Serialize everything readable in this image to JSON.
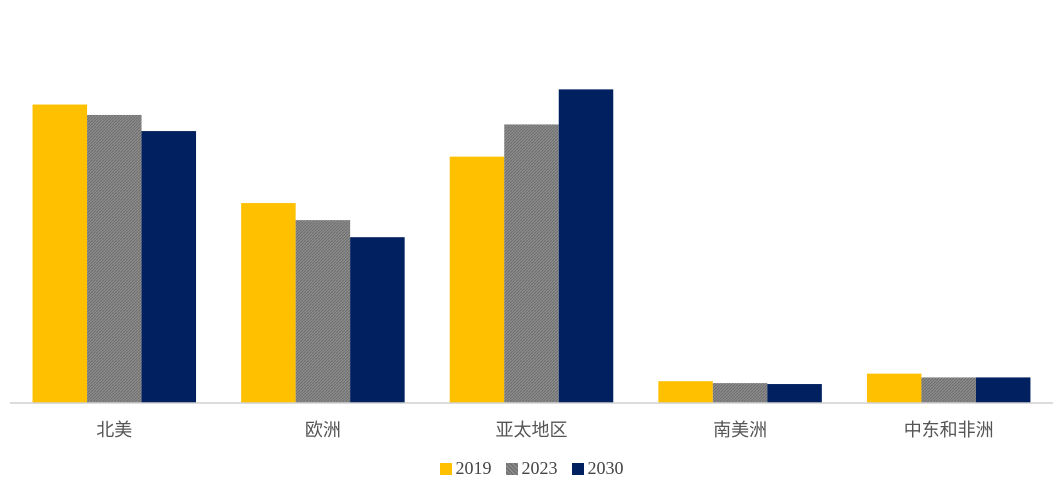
{
  "chart_data": {
    "type": "bar",
    "title": "",
    "xlabel": "",
    "ylabel": "",
    "categories": [
      "北美",
      "欧洲",
      "亚太地区",
      "南美洲",
      "中东和非洲"
    ],
    "series": [
      {
        "name": "2019",
        "color": "#ffc000",
        "values": [
          315,
          211,
          260,
          23,
          31
        ]
      },
      {
        "name": "2023",
        "color": "#808080",
        "pattern": "hatched",
        "values": [
          304,
          193,
          294,
          21,
          27
        ]
      },
      {
        "name": "2030",
        "color": "#002060",
        "values": [
          287,
          175,
          331,
          20,
          27
        ]
      }
    ],
    "ylim": [
      0,
      400
    ],
    "y_axis_visible": false,
    "grid": false,
    "legend_position": "bottom"
  }
}
